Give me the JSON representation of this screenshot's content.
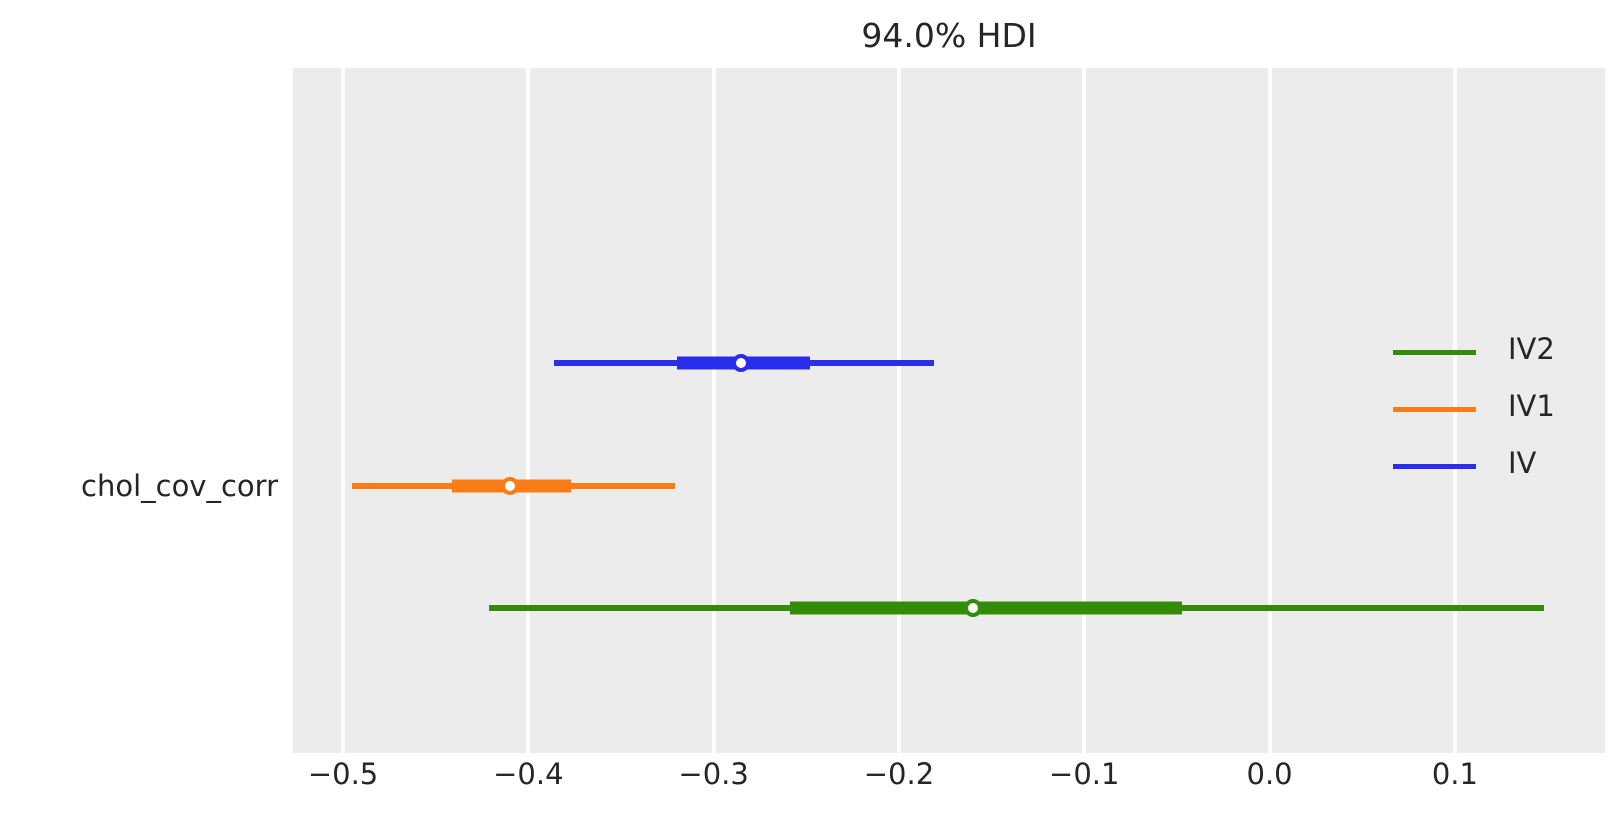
{
  "figure": {
    "title": "94.0% HDI",
    "y_axis_tick_label": "chol_cov_corr"
  },
  "chart_data": {
    "type": "forest",
    "title": "94.0% HDI",
    "hdi_probability": "94.0%",
    "y_categories": [
      "chol_cov_corr"
    ],
    "xlim": [
      -0.527,
      0.181
    ],
    "x_ticks": [
      {
        "value": -0.5,
        "label": "−0.5"
      },
      {
        "value": -0.4,
        "label": "−0.4"
      },
      {
        "value": -0.3,
        "label": "−0.3"
      },
      {
        "value": -0.2,
        "label": "−0.2"
      },
      {
        "value": -0.1,
        "label": "−0.1"
      },
      {
        "value": 0.0,
        "label": "0.0"
      },
      {
        "value": 0.1,
        "label": "0.1"
      }
    ],
    "grid": {
      "vertical": true,
      "horizontal": false,
      "gridline_color": "#ffffff"
    },
    "plot_background": "#ececec",
    "text_color": "#262626",
    "legend": {
      "position": "center right",
      "frame": false,
      "entries": [
        {
          "label": "IV2",
          "color": "#328c06"
        },
        {
          "label": "IV1",
          "color": "#fa7c17"
        },
        {
          "label": "IV",
          "color": "#2a2eec"
        }
      ]
    },
    "series": [
      {
        "name": "IV",
        "color": "#2a2eec",
        "row_y_frac": 0.431,
        "hdi_lower": -0.386,
        "hdi_upper": -0.181,
        "quartile_lower": -0.32,
        "quartile_upper": -0.248,
        "point_estimate": -0.285
      },
      {
        "name": "IV1",
        "color": "#fa7c17",
        "row_y_frac": 0.61,
        "hdi_lower": -0.495,
        "hdi_upper": -0.321,
        "quartile_lower": -0.441,
        "quartile_upper": -0.377,
        "point_estimate": -0.41
      },
      {
        "name": "IV2",
        "color": "#328c06",
        "row_y_frac": 0.788,
        "hdi_lower": -0.421,
        "hdi_upper": 0.148,
        "quartile_lower": -0.259,
        "quartile_upper": -0.047,
        "point_estimate": -0.16
      }
    ]
  }
}
